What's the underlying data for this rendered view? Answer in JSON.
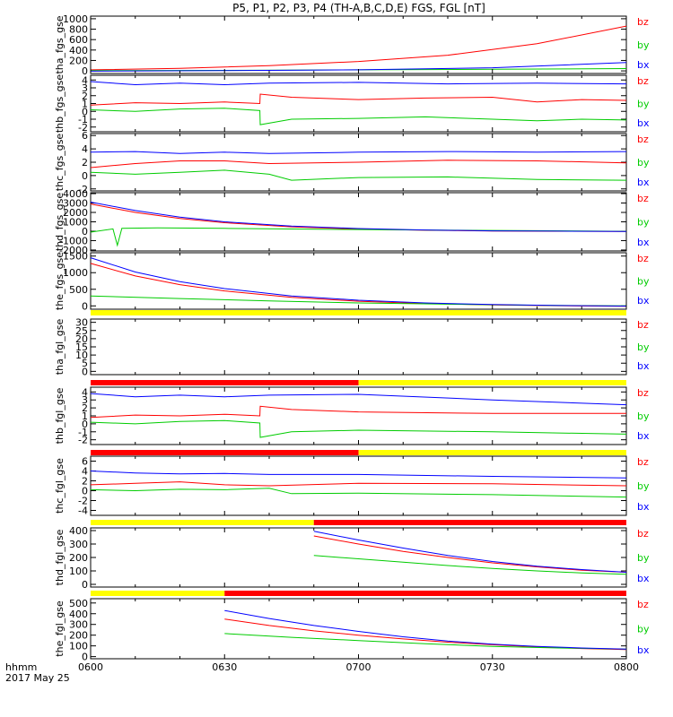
{
  "chart_data": {
    "type": "line",
    "title": "P5, P1, P2, P3, P4 (TH-A,B,C,D,E) FGS, FGL [nT]",
    "x_ticks": [
      "0600",
      "0630",
      "0700",
      "0730",
      "0800"
    ],
    "x_range_minutes": [
      0,
      120
    ],
    "footer_label_1": "hhmm",
    "footer_label_2": "2017 May 25",
    "colors": {
      "bz": "#ff0000",
      "by": "#00cc00",
      "bx": "#0000ff",
      "flag_red": "#ff0000",
      "flag_yellow": "#ffff00"
    },
    "panels": [
      {
        "ylabel": "tha_fgs_gse",
        "ylim": [
          -50,
          1050
        ],
        "ytick_labels": [
          "1000",
          "800",
          "600",
          "400",
          "200",
          "0"
        ],
        "ytick_values": [
          1000,
          800,
          600,
          400,
          200,
          0
        ],
        "legend": [
          "bz",
          "by",
          "bx"
        ],
        "series": [
          {
            "name": "bz",
            "x": [
              0,
              20,
              40,
              60,
              80,
              100,
              120
            ],
            "values": [
              20,
              50,
              100,
              180,
              300,
              520,
              860
            ]
          },
          {
            "name": "by",
            "x": [
              0,
              30,
              60,
              90,
              120
            ],
            "values": [
              5,
              10,
              20,
              30,
              45
            ]
          },
          {
            "name": "bx",
            "x": [
              0,
              30,
              60,
              90,
              120
            ],
            "values": [
              -5,
              5,
              20,
              60,
              160
            ]
          }
        ]
      },
      {
        "ylabel": "thb_fgs_gse",
        "ylim": [
          -2.6,
          4.6
        ],
        "ytick_labels": [
          "4",
          "3",
          "2",
          "1",
          "0",
          "-1",
          "-2"
        ],
        "ytick_values": [
          4,
          3,
          2,
          1,
          0,
          -1,
          -2
        ],
        "legend": [
          "bz",
          "by",
          "bx"
        ],
        "series": [
          {
            "name": "bz",
            "x": [
              0,
              10,
              20,
              30,
              37.9,
              38,
              45,
              60,
              75,
              90,
              100,
              110,
              120
            ],
            "values": [
              0.8,
              1.1,
              1.0,
              1.2,
              1.0,
              2.2,
              1.8,
              1.5,
              1.7,
              1.8,
              1.2,
              1.5,
              1.4
            ]
          },
          {
            "name": "by",
            "x": [
              0,
              10,
              20,
              30,
              37.9,
              38,
              45,
              60,
              75,
              90,
              100,
              110,
              120
            ],
            "values": [
              0.2,
              0.0,
              0.3,
              0.4,
              0.1,
              -1.7,
              -1.0,
              -0.9,
              -0.7,
              -1.0,
              -1.2,
              -1.0,
              -1.1
            ]
          },
          {
            "name": "bx",
            "x": [
              0,
              10,
              20,
              30,
              40,
              60,
              80,
              100,
              120
            ],
            "values": [
              3.8,
              3.4,
              3.6,
              3.4,
              3.6,
              3.7,
              3.5,
              3.6,
              3.5
            ]
          }
        ]
      },
      {
        "ylabel": "thc_fgs_gse",
        "ylim": [
          -2.3,
          6.3
        ],
        "ytick_labels": [
          "6",
          "4",
          "2",
          "0",
          "-2"
        ],
        "ytick_values": [
          6,
          4,
          2,
          0,
          -2
        ],
        "legend": [
          "bz",
          "by",
          "bx"
        ],
        "series": [
          {
            "name": "bz",
            "x": [
              0,
              10,
              20,
              30,
              40,
              60,
              80,
              100,
              120
            ],
            "values": [
              1.2,
              1.8,
              2.2,
              2.2,
              1.8,
              2.0,
              2.3,
              2.2,
              1.9
            ]
          },
          {
            "name": "by",
            "x": [
              0,
              10,
              20,
              30,
              40,
              45,
              60,
              80,
              100,
              120
            ],
            "values": [
              0.5,
              0.2,
              0.5,
              0.8,
              0.2,
              -0.7,
              -0.3,
              -0.2,
              -0.6,
              -0.7
            ]
          },
          {
            "name": "bx",
            "x": [
              0,
              10,
              20,
              30,
              40,
              60,
              80,
              100,
              120
            ],
            "values": [
              3.5,
              3.6,
              3.3,
              3.5,
              3.3,
              3.5,
              3.6,
              3.5,
              3.6
            ]
          }
        ]
      },
      {
        "ylabel": "thd_fgs_gse",
        "ylim": [
          -2100,
          4100
        ],
        "ytick_labels": [
          "4000",
          "3000",
          "2000",
          "1000",
          "0",
          "-1000",
          "-2000"
        ],
        "ytick_values": [
          4000,
          3000,
          2000,
          1000,
          0,
          -1000,
          -2000
        ],
        "legend": [
          "bz",
          "by",
          "bx"
        ],
        "series": [
          {
            "name": "bz",
            "x": [
              0,
              10,
              20,
              30,
              45,
              60,
              75,
              90,
              105,
              120
            ],
            "values": [
              2900,
              2000,
              1350,
              900,
              470,
              230,
              100,
              30,
              0,
              -20
            ]
          },
          {
            "name": "by",
            "x": [
              0,
              5,
              6,
              7,
              15,
              30,
              60,
              90,
              120
            ],
            "values": [
              -100,
              250,
              -1500,
              300,
              350,
              300,
              180,
              80,
              -10
            ]
          },
          {
            "name": "bx",
            "x": [
              0,
              10,
              20,
              30,
              45,
              60,
              75,
              90,
              105,
              120
            ],
            "values": [
              3100,
              2200,
              1500,
              1000,
              550,
              280,
              130,
              40,
              5,
              -20
            ]
          }
        ]
      },
      {
        "ylabel": "the_fgs_gse",
        "ylim": [
          -100,
          1600
        ],
        "ytick_labels": [
          "1500",
          "1000",
          "500",
          "0"
        ],
        "ytick_values": [
          1500,
          1000,
          500,
          0
        ],
        "legend": [
          "bz",
          "by",
          "bx"
        ],
        "series": [
          {
            "name": "bz",
            "x": [
              0,
              10,
              20,
              30,
              45,
              60,
              75,
              90,
              105,
              120
            ],
            "values": [
              1280,
              900,
              640,
              450,
              260,
              140,
              70,
              30,
              5,
              -10
            ]
          },
          {
            "name": "by",
            "x": [
              0,
              20,
              40,
              60,
              80,
              100,
              120
            ],
            "values": [
              300,
              220,
              150,
              90,
              50,
              20,
              0
            ]
          },
          {
            "name": "bx",
            "x": [
              0,
              10,
              20,
              30,
              45,
              60,
              75,
              90,
              105,
              120
            ],
            "values": [
              1450,
              1020,
              730,
              520,
              300,
              170,
              90,
              40,
              10,
              -5
            ]
          }
        ]
      },
      {
        "ylabel": "tha_fgl_gse",
        "ylim": [
          -2,
          32
        ],
        "ytick_labels": [
          "30",
          "25",
          "20",
          "15",
          "10",
          "5",
          "0"
        ],
        "ytick_values": [
          30,
          25,
          20,
          15,
          10,
          5,
          0
        ],
        "legend": [
          "bz",
          "by",
          "bx"
        ],
        "series": []
      },
      {
        "ylabel": "thb_fgl_gse",
        "ylim": [
          -2.6,
          4.6
        ],
        "ytick_labels": [
          "4",
          "3",
          "2",
          "1",
          "0",
          "-1",
          "-2"
        ],
        "ytick_values": [
          4,
          3,
          2,
          1,
          0,
          -1,
          -2
        ],
        "legend": [
          "bz",
          "by",
          "bx"
        ],
        "series": [
          {
            "name": "bz",
            "x": [
              0,
              10,
              20,
              30,
              37.9,
              38,
              45,
              60,
              90,
              120
            ],
            "values": [
              0.8,
              1.1,
              1.0,
              1.2,
              1.0,
              2.2,
              1.8,
              1.5,
              1.3,
              1.3
            ]
          },
          {
            "name": "by",
            "x": [
              0,
              10,
              20,
              30,
              37.9,
              38,
              45,
              60,
              90,
              120
            ],
            "values": [
              0.2,
              0.0,
              0.3,
              0.4,
              0.1,
              -1.7,
              -1.0,
              -0.8,
              -1.0,
              -1.3
            ]
          },
          {
            "name": "bx",
            "x": [
              0,
              10,
              20,
              30,
              40,
              60,
              90,
              120
            ],
            "values": [
              3.8,
              3.4,
              3.6,
              3.4,
              3.6,
              3.7,
              3.0,
              2.4
            ]
          }
        ]
      },
      {
        "ylabel": "thc_fgl_gse",
        "ylim": [
          -5,
          7
        ],
        "ytick_labels": [
          "6",
          "4",
          "2",
          "0",
          "-2",
          "-4"
        ],
        "ytick_values": [
          6,
          4,
          2,
          0,
          -2,
          -4
        ],
        "legend": [
          "bz",
          "by",
          "bx"
        ],
        "series": [
          {
            "name": "bz",
            "x": [
              0,
              10,
              20,
              30,
              40,
              60,
              90,
              120
            ],
            "values": [
              1.2,
              1.5,
              1.8,
              1.2,
              1.0,
              1.5,
              1.4,
              1.0
            ]
          },
          {
            "name": "by",
            "x": [
              0,
              10,
              20,
              30,
              40,
              45,
              60,
              90,
              120
            ],
            "values": [
              0.2,
              0.0,
              0.3,
              0.2,
              0.5,
              -0.6,
              -0.5,
              -0.8,
              -1.3
            ]
          },
          {
            "name": "bx",
            "x": [
              0,
              10,
              20,
              30,
              40,
              60,
              90,
              120
            ],
            "values": [
              4.0,
              3.6,
              3.4,
              3.5,
              3.3,
              3.3,
              2.9,
              2.6
            ]
          }
        ]
      },
      {
        "ylabel": "thd_fgl_gse",
        "ylim": [
          -20,
          420
        ],
        "ytick_labels": [
          "400",
          "300",
          "200",
          "100",
          "0"
        ],
        "ytick_values": [
          400,
          300,
          200,
          100,
          0
        ],
        "legend": [
          "bz",
          "by",
          "bx"
        ],
        "series": [
          {
            "name": "bz",
            "x": [
              50,
              60,
              70,
              80,
              90,
              100,
              110,
              120
            ],
            "values": [
              360,
              300,
              245,
              200,
              160,
              130,
              105,
              90
            ]
          },
          {
            "name": "by",
            "x": [
              50,
              60,
              70,
              80,
              90,
              100,
              110,
              120
            ],
            "values": [
              215,
              190,
              165,
              140,
              118,
              100,
              85,
              75
            ]
          },
          {
            "name": "bx",
            "x": [
              50,
              60,
              70,
              80,
              90,
              100,
              110,
              120
            ],
            "values": [
              395,
              330,
              270,
              215,
              170,
              135,
              110,
              90
            ]
          }
        ]
      },
      {
        "ylabel": "the_fgl_gse",
        "ylim": [
          -20,
          540
        ],
        "ytick_labels": [
          "500",
          "400",
          "300",
          "200",
          "100",
          "0"
        ],
        "ytick_values": [
          500,
          400,
          300,
          200,
          100,
          0
        ],
        "legend": [
          "bz",
          "by",
          "bx"
        ],
        "series": [
          {
            "name": "bz",
            "x": [
              30,
              40,
              50,
              60,
              70,
              80,
              90,
              100,
              110,
              120
            ],
            "values": [
              350,
              290,
              240,
              200,
              165,
              135,
              110,
              90,
              75,
              65
            ]
          },
          {
            "name": "by",
            "x": [
              30,
              45,
              60,
              75,
              90,
              105,
              120
            ],
            "values": [
              215,
              180,
              150,
              120,
              95,
              80,
              70
            ]
          },
          {
            "name": "bx",
            "x": [
              30,
              40,
              50,
              60,
              70,
              80,
              90,
              100,
              110,
              120
            ],
            "values": [
              430,
              355,
              290,
              235,
              185,
              145,
              115,
              95,
              80,
              70
            ]
          }
        ]
      }
    ],
    "flag_bars": [
      {
        "after_panel": 5,
        "segments": [
          {
            "from": 0,
            "to": 120,
            "color": "yellow"
          }
        ]
      },
      {
        "after_panel": 6,
        "segments": [
          {
            "from": 0,
            "to": 60,
            "color": "red"
          },
          {
            "from": 60,
            "to": 120,
            "color": "yellow"
          }
        ]
      },
      {
        "after_panel": 7,
        "segments": [
          {
            "from": 0,
            "to": 60,
            "color": "red"
          },
          {
            "from": 60,
            "to": 120,
            "color": "yellow"
          }
        ]
      },
      {
        "after_panel": 8,
        "segments": [
          {
            "from": 0,
            "to": 50,
            "color": "yellow"
          },
          {
            "from": 50,
            "to": 120,
            "color": "red"
          }
        ]
      },
      {
        "after_panel": 9,
        "segments": [
          {
            "from": 0,
            "to": 30,
            "color": "yellow"
          },
          {
            "from": 30,
            "to": 120,
            "color": "red"
          }
        ]
      }
    ]
  }
}
